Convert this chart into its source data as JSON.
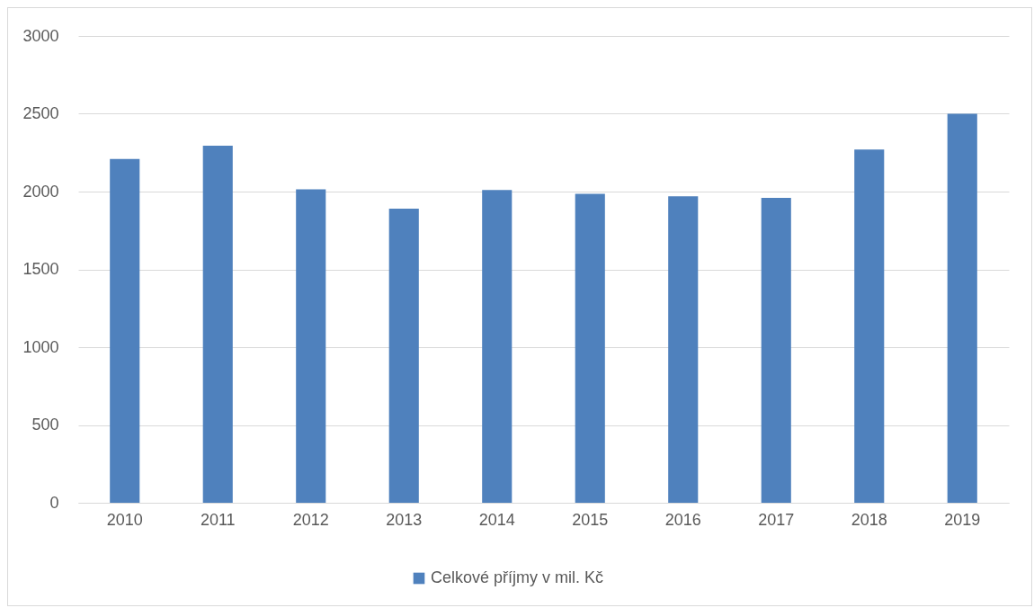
{
  "chart_data": {
    "type": "bar",
    "categories": [
      "2010",
      "2011",
      "2012",
      "2013",
      "2014",
      "2015",
      "2016",
      "2017",
      "2018",
      "2019"
    ],
    "series": [
      {
        "name": "Celkové příjmy v mil. Kč",
        "color": "#4f81bd",
        "values": [
          2210,
          2295,
          2015,
          1890,
          2010,
          1985,
          1970,
          1960,
          2270,
          2500
        ]
      }
    ],
    "ylim": [
      0,
      3000
    ],
    "yticks": [
      0,
      500,
      1000,
      1500,
      2000,
      2500,
      3000
    ],
    "grid": "y",
    "legend": "bottom"
  }
}
